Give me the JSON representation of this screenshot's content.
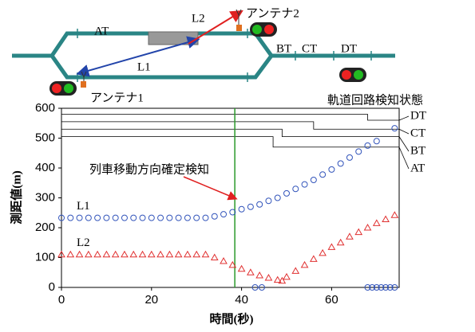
{
  "diagram": {
    "labels": {
      "at": "AT",
      "l2": "L2",
      "antenna2": "アンテナ2",
      "bt": "BT",
      "ct": "CT",
      "dt": "DT",
      "l1": "L1",
      "antenna1": "アンテナ1"
    }
  },
  "chart_data": {
    "type": "scatter",
    "title": "軌道回路検知状態",
    "xlabel": "時間(秒)",
    "ylabel": "測距値(m)",
    "annotation": "列車移動方向確定検知",
    "event_x": 38.5,
    "xlim": [
      0,
      75
    ],
    "ylim": [
      0,
      600
    ],
    "xticks": [
      0,
      20,
      40,
      60
    ],
    "yticks": [
      0,
      100,
      200,
      300,
      400,
      500,
      600
    ],
    "series": [
      {
        "name": "L1",
        "color": "#3355bb",
        "marker": "circle",
        "x": [
          0,
          2,
          4,
          6,
          8,
          10,
          12,
          14,
          16,
          18,
          20,
          22,
          24,
          26,
          28,
          30,
          32,
          34,
          36,
          38,
          40,
          42,
          44,
          46,
          48,
          50,
          52,
          54,
          56,
          58,
          60,
          62,
          64,
          66,
          68,
          70,
          43,
          44.5,
          68,
          69,
          70,
          71,
          72,
          73,
          74,
          74
        ],
        "values": [
          233,
          233,
          233,
          233,
          233,
          233,
          233,
          233,
          233,
          233,
          233,
          233,
          233,
          233,
          233,
          233,
          233,
          238,
          245,
          252,
          262,
          270,
          278,
          290,
          300,
          315,
          330,
          345,
          360,
          378,
          395,
          415,
          435,
          455,
          475,
          490,
          0,
          0,
          0,
          0,
          0,
          0,
          0,
          0,
          0,
          533
        ]
      },
      {
        "name": "L2",
        "color": "#e03030",
        "marker": "triangle",
        "x": [
          0,
          2,
          4,
          6,
          8,
          10,
          12,
          14,
          16,
          18,
          20,
          22,
          24,
          26,
          28,
          30,
          32,
          34,
          36,
          38,
          40,
          42,
          44,
          46,
          48,
          49,
          50,
          52,
          54,
          56,
          58,
          60,
          62,
          64,
          66,
          68,
          70,
          72,
          74
        ],
        "values": [
          110,
          110,
          110,
          110,
          110,
          110,
          110,
          110,
          110,
          110,
          110,
          110,
          110,
          110,
          110,
          110,
          110,
          100,
          88,
          75,
          62,
          50,
          40,
          32,
          25,
          22,
          35,
          55,
          75,
          95,
          115,
          135,
          150,
          170,
          185,
          200,
          215,
          228,
          242
        ]
      }
    ],
    "track_states": [
      {
        "name": "DT",
        "x": [
          0,
          68,
          68,
          75
        ],
        "values": [
          580,
          580,
          560,
          560
        ]
      },
      {
        "name": "CT",
        "x": [
          0,
          56,
          56,
          75
        ],
        "values": [
          555,
          555,
          530,
          530
        ]
      },
      {
        "name": "BT",
        "x": [
          0,
          49,
          49,
          75
        ],
        "values": [
          530,
          530,
          505,
          505
        ]
      },
      {
        "name": "AT",
        "x": [
          0,
          47,
          47,
          75
        ],
        "values": [
          505,
          505,
          470,
          470
        ]
      }
    ]
  }
}
